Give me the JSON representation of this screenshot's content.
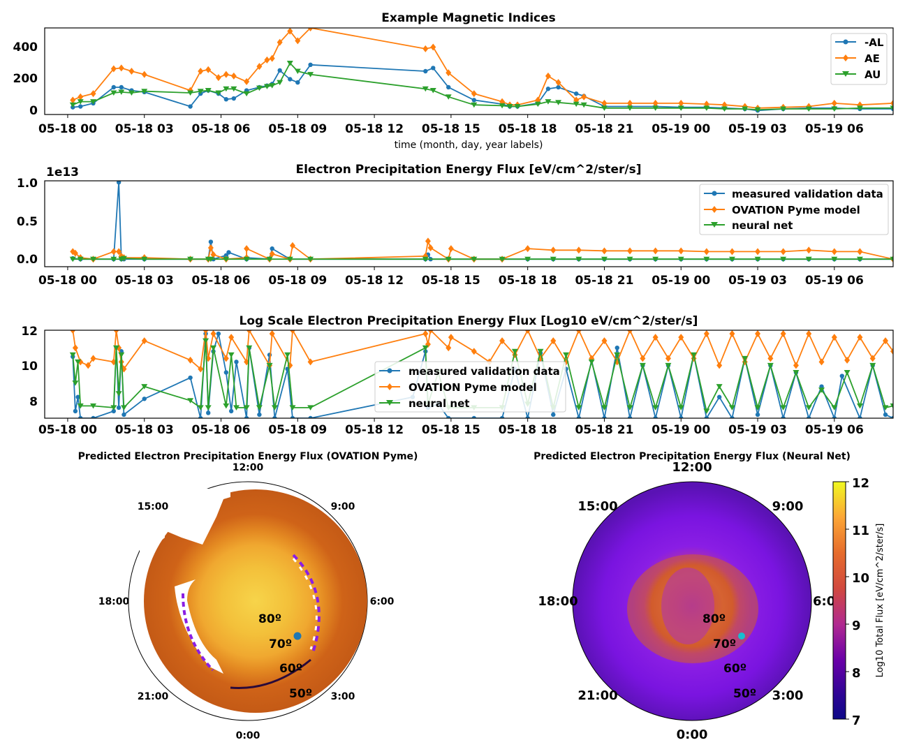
{
  "colors": {
    "blue": "#1f77b4",
    "orange": "#ff7f0e",
    "green": "#2ca02c",
    "cyan_marker": "#17becf"
  },
  "time_ticks": [
    "05-18 00",
    "05-18 03",
    "05-18 06",
    "05-18 09",
    "05-18 12",
    "05-18 15",
    "05-18 18",
    "05-18 21",
    "05-19 00",
    "05-19 03",
    "05-19 06"
  ],
  "chart_data": [
    {
      "type": "line",
      "title": "Example Magnetic Indices",
      "xlabel": "time (month, day, year labels)",
      "ylabel": "",
      "x_unit": "hours since 05-18 00",
      "xlim": [
        -0.9,
        32.3
      ],
      "ylim": [
        -20,
        520
      ],
      "yticks": [
        "0",
        "200",
        "400"
      ],
      "legend": "top-right",
      "series": [
        {
          "name": "-AL",
          "color": "#1f77b4",
          "marker": "circle",
          "x": [
            0.2,
            0.5,
            1.0,
            1.8,
            2.1,
            2.5,
            3.0,
            4.8,
            5.2,
            5.5,
            5.9,
            6.2,
            6.5,
            7.0,
            7.5,
            7.8,
            8.0,
            8.3,
            8.7,
            9.0,
            9.5,
            14.0,
            14.3,
            14.9,
            15.9,
            17.0,
            17.3,
            17.6,
            18.4,
            18.8,
            19.2,
            19.9,
            20.2,
            21.0,
            22.0,
            23.0,
            24.0,
            25.0,
            25.7,
            26.5,
            27.0,
            28.0,
            29.0,
            30.0,
            31.0,
            32.3
          ],
          "y": [
            25,
            30,
            50,
            150,
            150,
            130,
            120,
            30,
            110,
            130,
            110,
            75,
            80,
            130,
            150,
            160,
            170,
            255,
            200,
            180,
            290,
            250,
            270,
            150,
            70,
            45,
            30,
            30,
            50,
            140,
            150,
            110,
            95,
            30,
            30,
            30,
            25,
            25,
            20,
            15,
            5,
            15,
            20,
            20,
            15,
            15
          ]
        },
        {
          "name": "AE",
          "color": "#ff7f0e",
          "marker": "diamond",
          "x": [
            0.2,
            0.5,
            1.0,
            1.8,
            2.1,
            2.5,
            3.0,
            4.8,
            5.2,
            5.5,
            5.9,
            6.2,
            6.5,
            7.0,
            7.5,
            7.8,
            8.0,
            8.3,
            8.7,
            9.0,
            9.5,
            14.0,
            14.3,
            14.9,
            15.9,
            17.0,
            17.3,
            17.6,
            18.4,
            18.8,
            19.2,
            19.9,
            20.2,
            21.0,
            22.0,
            23.0,
            24.0,
            25.0,
            25.7,
            26.5,
            27.0,
            28.0,
            29.0,
            30.0,
            31.0,
            32.3
          ],
          "y": [
            70,
            90,
            110,
            265,
            270,
            250,
            230,
            130,
            250,
            260,
            210,
            230,
            220,
            185,
            280,
            320,
            330,
            430,
            500,
            440,
            520,
            390,
            400,
            240,
            110,
            60,
            40,
            40,
            70,
            220,
            180,
            70,
            90,
            50,
            50,
            50,
            50,
            45,
            40,
            30,
            20,
            25,
            30,
            50,
            40,
            50
          ]
        },
        {
          "name": "AU",
          "color": "#2ca02c",
          "marker": "triangle-down",
          "x": [
            0.2,
            0.5,
            1.0,
            1.8,
            2.1,
            2.5,
            3.0,
            4.8,
            5.2,
            5.5,
            5.9,
            6.2,
            6.5,
            7.0,
            7.5,
            7.8,
            8.0,
            8.3,
            8.7,
            9.0,
            9.5,
            14.0,
            14.3,
            14.9,
            15.9,
            17.0,
            17.3,
            17.6,
            18.4,
            18.8,
            19.2,
            19.9,
            20.2,
            21.0,
            22.0,
            23.0,
            24.0,
            25.0,
            25.7,
            26.5,
            27.0,
            28.0,
            29.0,
            30.0,
            31.0,
            32.3
          ],
          "y": [
            40,
            60,
            60,
            115,
            120,
            115,
            125,
            115,
            125,
            130,
            115,
            140,
            140,
            110,
            145,
            155,
            160,
            180,
            300,
            250,
            230,
            140,
            130,
            90,
            40,
            35,
            30,
            30,
            45,
            60,
            55,
            45,
            40,
            20,
            20,
            20,
            20,
            20,
            15,
            15,
            10,
            15,
            15,
            15,
            20,
            20
          ]
        }
      ]
    },
    {
      "type": "line",
      "title": "Electron Precipitation Energy Flux [eV/cm^2/ster/s]",
      "offset_label": "1e13",
      "xlabel": "",
      "ylabel": "",
      "x_unit": "hours since 05-18 00",
      "xlim": [
        -0.9,
        32.3
      ],
      "ylim": [
        -0.1,
        1.04
      ],
      "yticks": [
        "0.0",
        "0.5",
        "1.0"
      ],
      "legend": "top-right",
      "series": [
        {
          "name": "measured validation data",
          "color": "#1f77b4",
          "marker": "circle",
          "x": [
            0.2,
            0.5,
            1.0,
            1.8,
            2.0,
            2.1,
            2.2,
            3.0,
            4.8,
            5.5,
            5.6,
            5.7,
            6.2,
            6.3,
            7.0,
            7.0,
            7.9,
            8.0,
            8.7,
            9.5,
            14.0,
            14.1,
            14.2,
            14.9,
            15.9,
            17.0,
            18.0,
            19.0,
            20.0,
            21.0,
            22.0,
            23.0,
            24.0,
            25.0,
            26.0,
            27.0,
            28.0,
            29.0,
            30.0,
            31.0,
            32.3
          ],
          "y": [
            0.01,
            0.0,
            0.0,
            0.0,
            1.02,
            0.0,
            0.0,
            0.0,
            0.0,
            0.0,
            0.23,
            0.0,
            0.05,
            0.09,
            0.0,
            0.02,
            0.0,
            0.14,
            0.0,
            0.0,
            0.0,
            0.06,
            0.0,
            0.0,
            0.0,
            0.0,
            0.0,
            0.0,
            0.0,
            0.0,
            0.0,
            0.0,
            0.0,
            0.0,
            0.0,
            0.0,
            0.0,
            0.0,
            0.0,
            0.0,
            0.0
          ]
        },
        {
          "name": "OVATION Pyme model",
          "color": "#ff7f0e",
          "marker": "diamond",
          "x": [
            0.2,
            0.3,
            0.5,
            1.0,
            1.8,
            2.0,
            2.1,
            2.2,
            3.0,
            4.8,
            5.5,
            5.6,
            5.7,
            6.2,
            7.0,
            7.0,
            7.9,
            8.0,
            8.7,
            8.8,
            9.5,
            14.0,
            14.1,
            14.2,
            14.9,
            15.0,
            15.9,
            17.0,
            18.0,
            19.0,
            20.0,
            21.0,
            22.0,
            23.0,
            24.0,
            25.0,
            26.0,
            27.0,
            28.0,
            29.0,
            30.0,
            31.0,
            32.3
          ],
          "y": [
            0.1,
            0.08,
            0.02,
            0.0,
            0.1,
            0.1,
            0.04,
            0.02,
            0.02,
            0.0,
            0.0,
            0.15,
            0.06,
            0.0,
            0.02,
            0.14,
            0.0,
            0.07,
            0.0,
            0.18,
            0.0,
            0.04,
            0.24,
            0.15,
            0.0,
            0.14,
            0.0,
            0.0,
            0.14,
            0.12,
            0.12,
            0.11,
            0.11,
            0.11,
            0.11,
            0.1,
            0.1,
            0.1,
            0.1,
            0.12,
            0.1,
            0.1,
            0.0
          ]
        },
        {
          "name": "neural net",
          "color": "#2ca02c",
          "marker": "triangle-down",
          "x": [
            0.2,
            0.5,
            1.0,
            1.8,
            2.1,
            2.2,
            3.0,
            4.8,
            5.5,
            5.6,
            6.2,
            7.0,
            7.9,
            8.7,
            9.5,
            14.0,
            14.9,
            15.9,
            17.0,
            18.0,
            19.0,
            20.0,
            21.0,
            22.0,
            23.0,
            24.0,
            25.0,
            26.0,
            27.0,
            28.0,
            29.0,
            30.0,
            31.0,
            32.3
          ],
          "y": [
            0.0,
            0.0,
            0.0,
            0.0,
            0.0,
            0.01,
            0.0,
            0.0,
            0.0,
            0.0,
            0.0,
            0.0,
            0.0,
            0.0,
            0.0,
            0.0,
            0.0,
            0.0,
            0.0,
            0.0,
            0.0,
            0.0,
            0.0,
            0.0,
            0.0,
            0.0,
            0.0,
            0.0,
            0.0,
            0.0,
            0.0,
            0.0,
            0.0,
            0.0
          ]
        }
      ]
    },
    {
      "type": "line",
      "title": "Log Scale Electron Precipitation Energy Flux [Log10 eV/cm^2/ster/s]",
      "xlabel": "",
      "ylabel": "",
      "x_unit": "hours since 05-18 00",
      "xlim": [
        -0.9,
        32.3
      ],
      "ylim": [
        7,
        12
      ],
      "yticks": [
        "8",
        "10",
        "12"
      ],
      "legend": "lower-center",
      "series": [
        {
          "name": "measured validation data",
          "color": "#1f77b4",
          "marker": "circle",
          "x": [
            0.2,
            0.3,
            0.4,
            0.5,
            1.0,
            1.8,
            1.9,
            2.0,
            2.1,
            2.2,
            3.0,
            4.8,
            5.2,
            5.4,
            5.5,
            5.7,
            5.9,
            6.2,
            6.4,
            6.6,
            7.0,
            7.1,
            7.5,
            7.9,
            8.1,
            8.6,
            8.8,
            9.5,
            13.5,
            14.0,
            14.1,
            14.5,
            14.9,
            15.9,
            17.0,
            17.5,
            18.0,
            18.5,
            19.0,
            19.5,
            20.0,
            20.5,
            21.0,
            21.5,
            22.0,
            22.5,
            23.0,
            23.5,
            24.0,
            24.5,
            25.0,
            25.5,
            26.0,
            26.5,
            27.0,
            27.5,
            28.0,
            28.5,
            29.0,
            29.5,
            30.0,
            30.3,
            31.0,
            31.5,
            32.0,
            32.3
          ],
          "y": [
            10.5,
            7.4,
            8.2,
            7.0,
            7.0,
            7.4,
            11.0,
            7.6,
            10.8,
            7.2,
            8.1,
            9.3,
            7.0,
            11.8,
            7.3,
            10.8,
            11.8,
            9.6,
            7.4,
            10.2,
            7.0,
            11.0,
            7.2,
            10.6,
            7.0,
            9.8,
            7.0,
            7.0,
            8.2,
            10.8,
            7.6,
            7.8,
            7.0,
            7.0,
            7.0,
            9.8,
            7.0,
            10.7,
            7.2,
            9.8,
            7.0,
            10.3,
            7.0,
            11.0,
            7.0,
            10.0,
            7.0,
            10.0,
            7.0,
            10.6,
            7.0,
            8.2,
            7.0,
            10.4,
            7.2,
            10.0,
            7.0,
            9.6,
            7.0,
            8.8,
            7.0,
            9.4,
            7.0,
            10.0,
            7.2,
            7.0
          ]
        },
        {
          "name": "OVATION Pyme model",
          "color": "#ff7f0e",
          "marker": "diamond",
          "x": [
            0.2,
            0.3,
            0.5,
            0.8,
            1.0,
            1.8,
            1.9,
            2.0,
            2.1,
            2.2,
            3.0,
            4.8,
            5.2,
            5.4,
            5.5,
            5.7,
            6.2,
            6.4,
            7.0,
            7.1,
            7.9,
            8.0,
            8.7,
            8.8,
            9.5,
            14.0,
            14.1,
            14.2,
            14.9,
            15.0,
            15.9,
            16.5,
            17.0,
            17.5,
            18.0,
            18.5,
            19.0,
            19.5,
            20.0,
            20.5,
            21.0,
            21.5,
            22.0,
            22.5,
            23.0,
            23.5,
            24.0,
            24.5,
            25.0,
            25.5,
            26.0,
            26.5,
            27.0,
            27.5,
            28.0,
            28.5,
            29.0,
            29.5,
            30.0,
            30.5,
            31.0,
            31.5,
            32.0,
            32.3
          ],
          "y": [
            12.0,
            11.0,
            10.2,
            10.0,
            10.4,
            10.2,
            12.0,
            11.0,
            10.2,
            9.8,
            11.4,
            10.3,
            9.8,
            12.0,
            10.4,
            11.8,
            10.4,
            11.6,
            10.2,
            12.0,
            10.0,
            11.8,
            10.0,
            12.0,
            10.2,
            11.8,
            11.2,
            12.0,
            11.0,
            11.6,
            10.8,
            10.2,
            11.4,
            10.6,
            12.0,
            10.4,
            11.4,
            10.2,
            12.0,
            10.4,
            11.4,
            10.2,
            12.0,
            10.4,
            11.6,
            10.4,
            11.6,
            10.4,
            11.8,
            10.0,
            11.8,
            10.2,
            11.8,
            10.4,
            11.8,
            10.0,
            11.8,
            10.2,
            11.6,
            10.3,
            11.6,
            10.4,
            11.4,
            10.8
          ]
        },
        {
          "name": "neural net",
          "color": "#2ca02c",
          "marker": "triangle-down",
          "x": [
            0.2,
            0.3,
            0.4,
            0.5,
            1.0,
            1.8,
            1.9,
            2.0,
            2.1,
            2.2,
            3.0,
            4.8,
            5.2,
            5.4,
            5.5,
            5.7,
            6.2,
            6.4,
            6.6,
            7.0,
            7.1,
            7.5,
            7.9,
            8.1,
            8.6,
            8.8,
            9.5,
            14.0,
            14.1,
            14.5,
            14.9,
            15.9,
            17.0,
            17.5,
            18.0,
            18.5,
            19.0,
            19.5,
            20.0,
            20.5,
            21.0,
            21.5,
            22.0,
            22.5,
            23.0,
            23.5,
            24.0,
            24.5,
            25.0,
            25.5,
            26.0,
            26.5,
            27.0,
            27.5,
            28.0,
            28.5,
            29.0,
            29.5,
            30.0,
            30.5,
            31.0,
            31.5,
            32.0,
            32.3
          ],
          "y": [
            10.6,
            9.0,
            10.2,
            7.7,
            7.7,
            7.6,
            11.0,
            8.4,
            10.6,
            7.6,
            8.8,
            8.0,
            7.6,
            11.4,
            7.6,
            11.0,
            7.7,
            10.6,
            7.6,
            7.6,
            11.0,
            7.6,
            10.0,
            7.6,
            10.6,
            7.6,
            7.6,
            11.0,
            7.8,
            9.6,
            7.6,
            7.6,
            7.6,
            10.8,
            7.8,
            10.8,
            7.6,
            10.6,
            7.6,
            10.2,
            7.6,
            10.6,
            7.6,
            10.0,
            7.6,
            10.0,
            7.6,
            10.6,
            7.4,
            8.8,
            7.6,
            10.4,
            7.6,
            10.0,
            7.6,
            9.6,
            7.6,
            8.6,
            7.6,
            9.6,
            7.7,
            10.0,
            7.6,
            7.7
          ]
        }
      ]
    },
    {
      "type": "heatmap",
      "projection": "polar",
      "title": "Predicted Electron Precipitation Energy Flux (OVATION Pyme)",
      "mlt_labels": [
        "12:00",
        "9:00",
        "6:00",
        "3:00",
        "0:00",
        "21:00",
        "18:00",
        "15:00"
      ],
      "latitude_labels": [
        "80º",
        "70º",
        "60º",
        "50º"
      ],
      "colormap": "inferno-like",
      "value_range": [
        7,
        12
      ]
    },
    {
      "type": "heatmap",
      "projection": "polar",
      "title": "Predicted Electron Precipitation Energy Flux (Neural Net)",
      "mlt_labels": [
        "12:00",
        "9:00",
        "6:0",
        "3:00",
        "0:00",
        "21:00",
        "18:00",
        "15:00"
      ],
      "latitude_labels": [
        "80º",
        "70º",
        "60º",
        "50º"
      ],
      "colormap": "plasma-like",
      "value_range": [
        7,
        12
      ],
      "colorbar": {
        "label": "Log10 Total Flux [eV/cm^2/ster/s]",
        "ticks": [
          "7",
          "8",
          "9",
          "10",
          "11",
          "12"
        ]
      }
    }
  ]
}
